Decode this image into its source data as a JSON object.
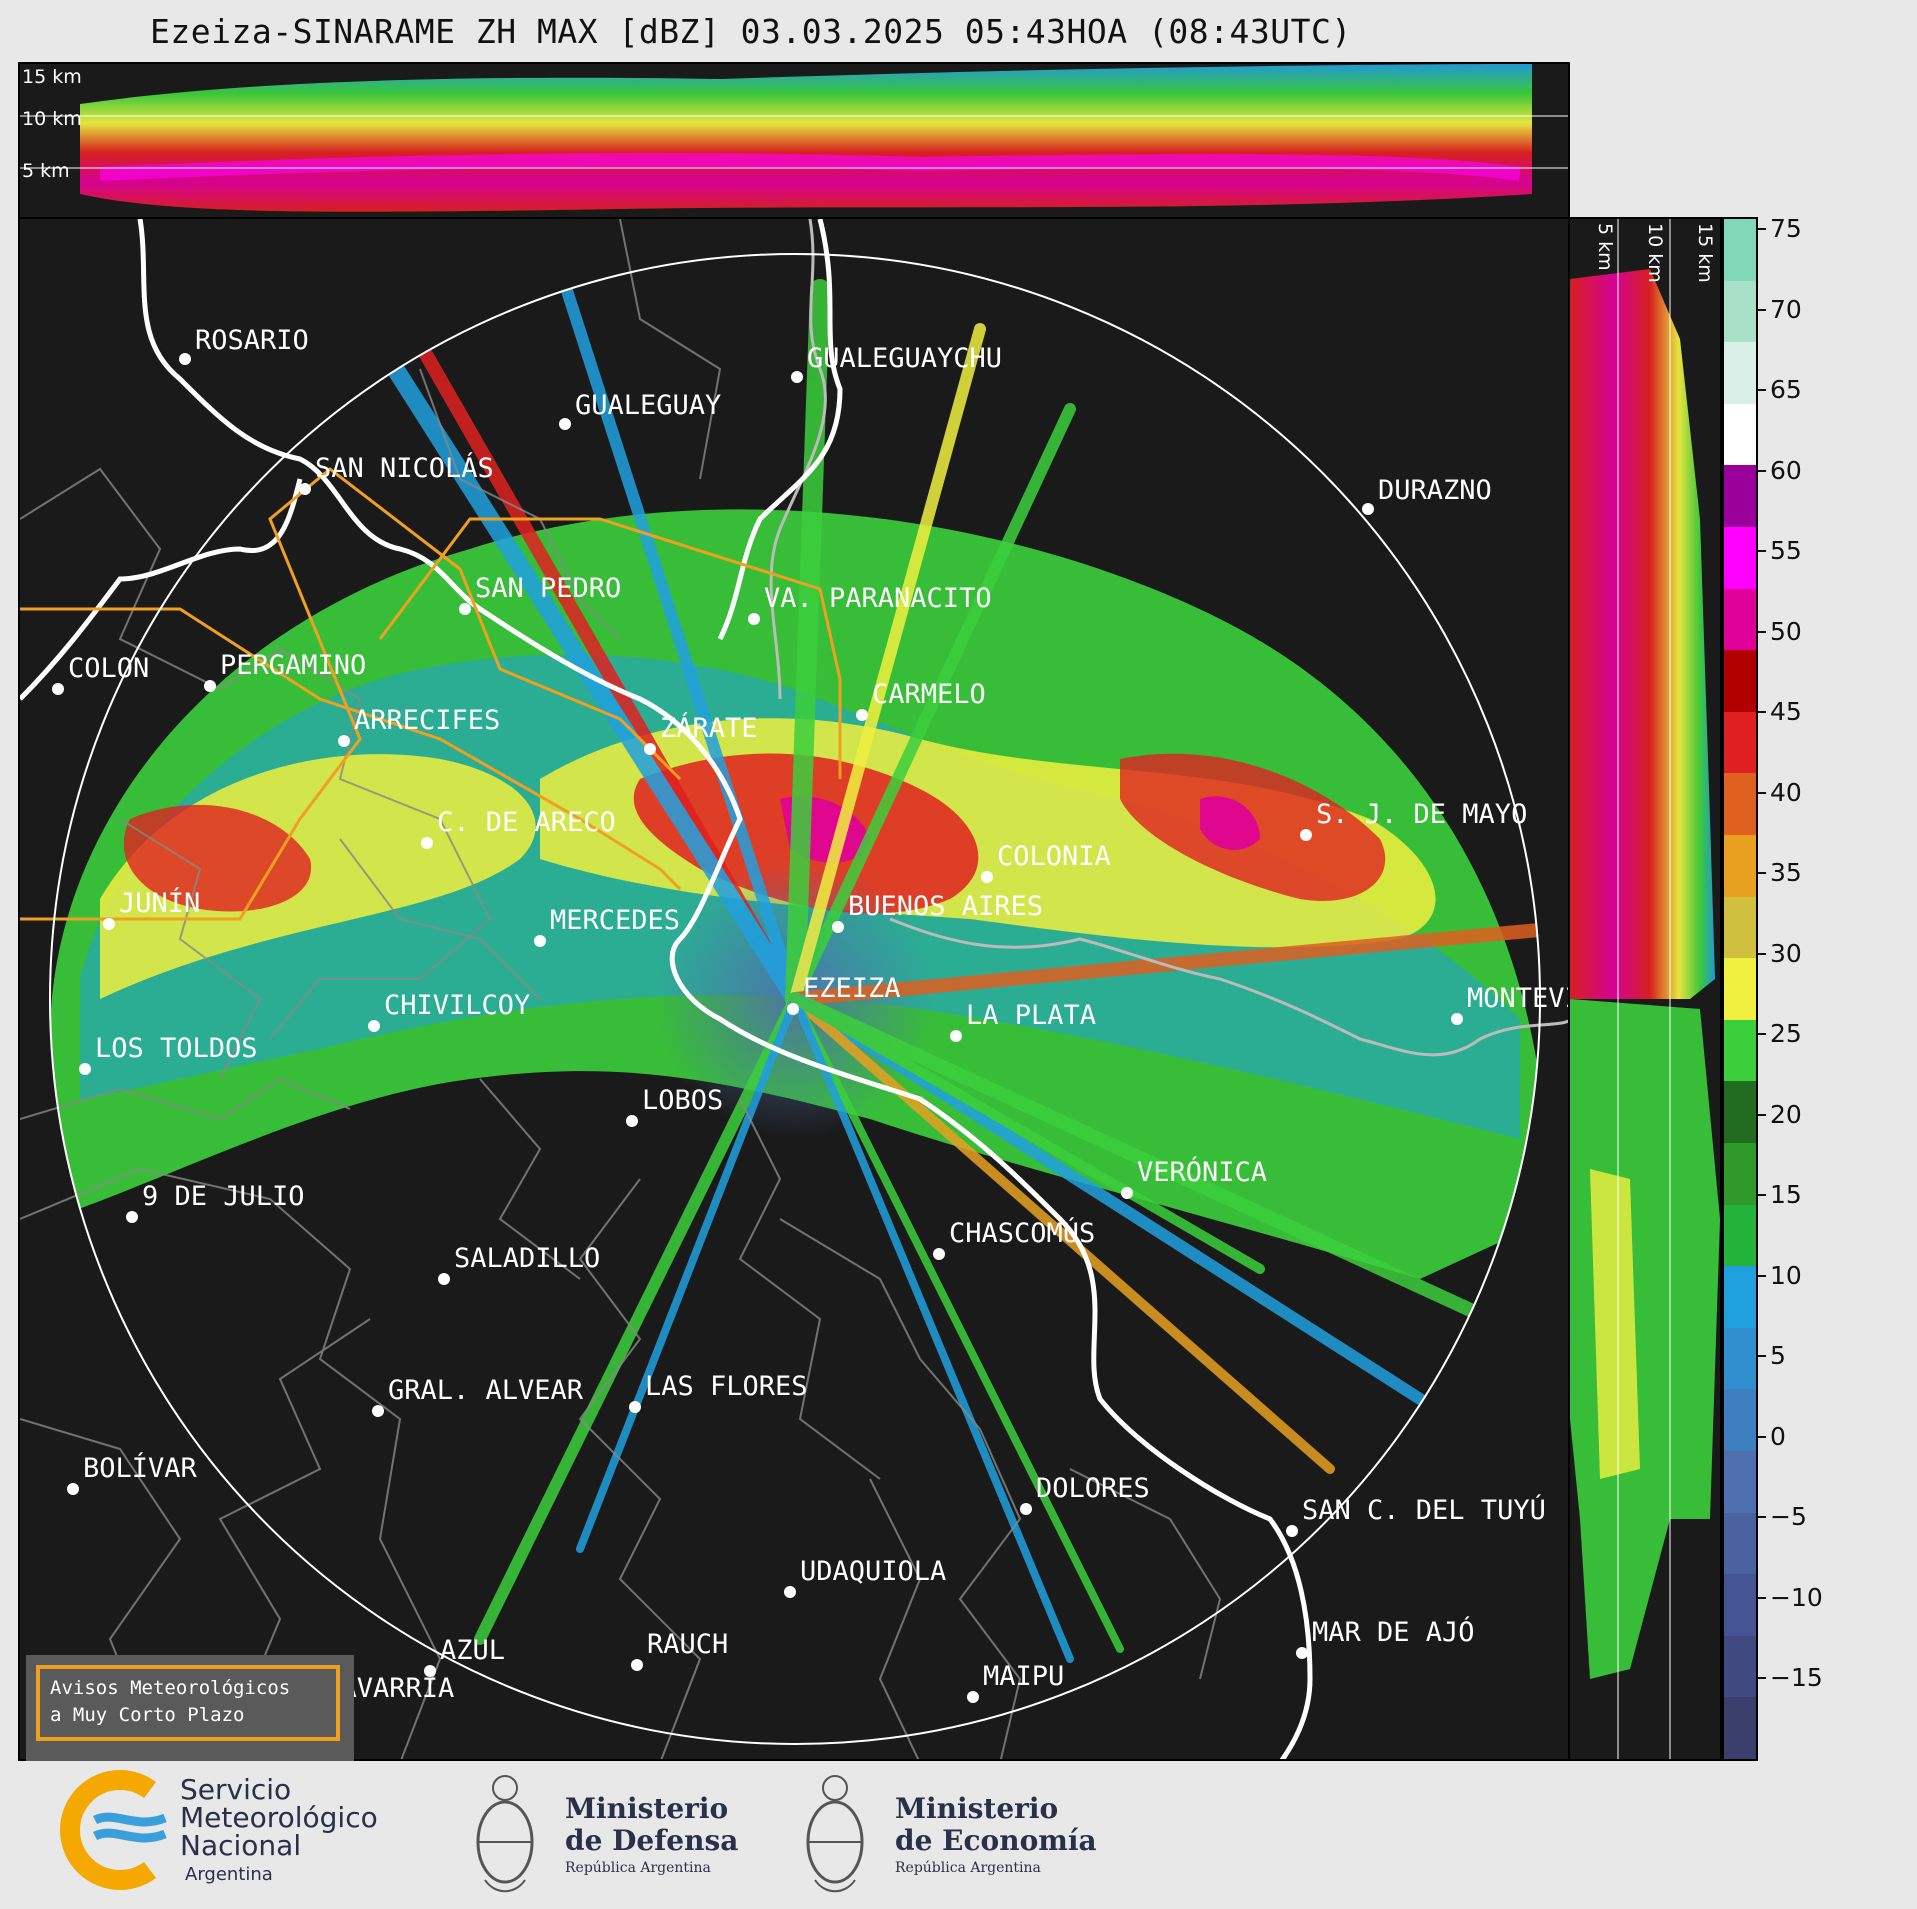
{
  "title": "Ezeiza-SINARAME ZH MAX [dBZ] 03.03.2025 05:43HOA (08:43UTC)",
  "top_panel": {
    "height_labels": [
      "15 km",
      "10 km",
      "5 km"
    ]
  },
  "side_panel": {
    "height_labels": [
      "5 km",
      "10 km",
      "15 km"
    ]
  },
  "colorbar": {
    "ticks": [
      "75",
      "70",
      "65",
      "60",
      "55",
      "50",
      "45",
      "40",
      "35",
      "30",
      "25",
      "20",
      "15",
      "10",
      "5",
      "0",
      "−5",
      "−10",
      "−15"
    ],
    "colors": [
      "#3b3f6b",
      "#404a80",
      "#455594",
      "#4a62a0",
      "#4f6fae",
      "#3d7fbf",
      "#2f8fcf",
      "#21a0df",
      "#24b33a",
      "#2f9a2a",
      "#226c22",
      "#3ccf3c",
      "#f0f040",
      "#d0c040",
      "#e8a020",
      "#e06020",
      "#e02020",
      "#b00000",
      "#e0009a",
      "#ff00ff",
      "#9a009a",
      "#ffffff",
      "#d8f0e8",
      "#a8e0c8",
      "#80d8b8"
    ]
  },
  "cities": [
    {
      "name": "ROSARIO"
    },
    {
      "name": "GUALEGUAYCHU"
    },
    {
      "name": "GUALEGUAY"
    },
    {
      "name": "SAN NICOLÁS"
    },
    {
      "name": "DURAZNO"
    },
    {
      "name": "SAN PEDRO"
    },
    {
      "name": "VA. PARANACITO"
    },
    {
      "name": "COLON"
    },
    {
      "name": "PERGAMINO"
    },
    {
      "name": "CARMELO"
    },
    {
      "name": "ZÁRATE"
    },
    {
      "name": "ARRECIFES"
    },
    {
      "name": "S. J. DE MAYO"
    },
    {
      "name": "C. DE ARECO"
    },
    {
      "name": "COLONIA"
    },
    {
      "name": "JUNÍN"
    },
    {
      "name": "MERCEDES"
    },
    {
      "name": "BUENOS AIRES"
    },
    {
      "name": "EZEIZA"
    },
    {
      "name": "MONTEVIDEO"
    },
    {
      "name": "CHIVILCOY"
    },
    {
      "name": "LA PLATA"
    },
    {
      "name": "LOS TOLDOS"
    },
    {
      "name": "LOBOS"
    },
    {
      "name": "VERÓNICA"
    },
    {
      "name": "9 DE JULIO"
    },
    {
      "name": "CHASCOMÚS"
    },
    {
      "name": "SALADILLO"
    },
    {
      "name": "GRAL. ALVEAR"
    },
    {
      "name": "LAS FLORES"
    },
    {
      "name": "BOLÍVAR"
    },
    {
      "name": "DOLORES"
    },
    {
      "name": "SAN C. DEL TUYÚ"
    },
    {
      "name": "UDAQUIOLA"
    },
    {
      "name": "AZUL"
    },
    {
      "name": "RAUCH"
    },
    {
      "name": "MAR DE AJÓ"
    },
    {
      "name": "OLAVARRÍA"
    },
    {
      "name": "MAIPU"
    }
  ],
  "warning_box": {
    "line1": "Avisos Meteorológicos",
    "line2": "a Muy Corto Plazo"
  },
  "logos": {
    "smn": [
      "Servicio",
      "Meteorológico",
      "Nacional",
      "Argentina"
    ],
    "defensa": [
      "Ministerio",
      "de Defensa",
      "República Argentina"
    ],
    "economia": [
      "Ministerio",
      "de Economía",
      "República Argentina"
    ]
  }
}
